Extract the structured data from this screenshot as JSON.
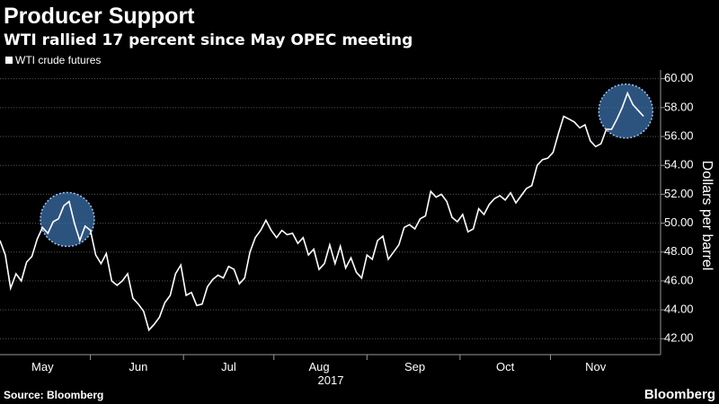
{
  "chart_data": {
    "type": "line",
    "title": "Producer Support",
    "subtitle": "WTI rallied 17 percent since May OPEC meeting",
    "xlabel": "2017",
    "ylabel": "Dollars per barrel",
    "series": [
      {
        "name": "WTI crude futures",
        "color": "#ffffff",
        "values": [
          48.8,
          47.8,
          45.5,
          46.5,
          46.0,
          47.3,
          47.7,
          48.9,
          49.7,
          49.3,
          50.1,
          50.3,
          51.2,
          51.5,
          50.0,
          48.8,
          49.8,
          49.5,
          47.8,
          47.2,
          47.9,
          46.0,
          45.7,
          46.0,
          46.5,
          44.8,
          44.4,
          43.9,
          42.6,
          43.0,
          43.5,
          44.5,
          45.0,
          46.5,
          47.1,
          45.0,
          45.2,
          44.3,
          44.4,
          45.6,
          46.1,
          46.4,
          46.2,
          47.0,
          46.8,
          45.8,
          46.2,
          48.0,
          49.0,
          49.5,
          50.2,
          49.5,
          49.0,
          49.5,
          49.2,
          49.3,
          48.6,
          49.0,
          47.8,
          48.2,
          46.8,
          47.2,
          48.5,
          47.2,
          48.4,
          46.9,
          47.6,
          46.6,
          46.2,
          47.8,
          47.5,
          48.8,
          49.1,
          47.5,
          48.0,
          48.5,
          49.7,
          49.9,
          49.6,
          50.3,
          50.5,
          52.2,
          51.8,
          52.0,
          51.5,
          50.4,
          50.1,
          50.6,
          49.4,
          49.6,
          51.0,
          50.6,
          51.3,
          51.7,
          51.9,
          51.6,
          52.1,
          51.4,
          51.9,
          52.4,
          52.6,
          54.0,
          54.4,
          54.5,
          54.9,
          56.2,
          57.4,
          57.2,
          57.0,
          56.6,
          56.8,
          55.7,
          55.3,
          55.5,
          56.5,
          56.5,
          57.2,
          58.0,
          59.0,
          58.2,
          57.8,
          57.4
        ]
      }
    ],
    "categories": [
      null,
      null,
      null,
      null,
      null,
      null,
      null,
      null,
      "May",
      null,
      null,
      null,
      null,
      null,
      null,
      null,
      null,
      null,
      null,
      null,
      null,
      null,
      null,
      null,
      null,
      null,
      "Jun",
      null,
      null,
      null,
      null,
      null,
      null,
      null,
      null,
      null,
      null,
      null,
      null,
      null,
      null,
      null,
      null,
      "Jul",
      null,
      null,
      null,
      null,
      null,
      null,
      null,
      null,
      null,
      null,
      null,
      null,
      null,
      null,
      null,
      null,
      "Aug",
      null,
      null,
      null,
      null,
      null,
      null,
      null,
      null,
      null,
      null,
      null,
      null,
      null,
      null,
      null,
      null,
      null,
      "Sep",
      null,
      null,
      null,
      null,
      null,
      null,
      null,
      null,
      null,
      null,
      null,
      null,
      null,
      null,
      null,
      null,
      "Oct",
      null,
      null,
      null,
      null,
      null,
      null,
      null,
      null,
      null,
      null,
      null,
      null,
      null,
      null,
      null,
      null,
      "Nov",
      null,
      null,
      null,
      null,
      null,
      null,
      null,
      null,
      null
    ],
    "ylim": [
      40.9,
      60.6
    ],
    "yticks": [
      {
        "value": 42,
        "label": "42.00"
      },
      {
        "value": 44,
        "label": "44.00"
      },
      {
        "value": 46,
        "label": "46.00"
      },
      {
        "value": 48,
        "label": "48.00"
      },
      {
        "value": 50,
        "label": "50.00"
      },
      {
        "value": 52,
        "label": "52.00"
      },
      {
        "value": 54,
        "label": "54.00"
      },
      {
        "value": 56,
        "label": "56.00"
      },
      {
        "value": 58,
        "label": "58.00"
      },
      {
        "value": 60,
        "label": "60.00"
      }
    ],
    "grid": true,
    "legend": "top-left"
  },
  "footer": {
    "source": "Source: Bloomberg",
    "brand": "Bloomberg"
  }
}
